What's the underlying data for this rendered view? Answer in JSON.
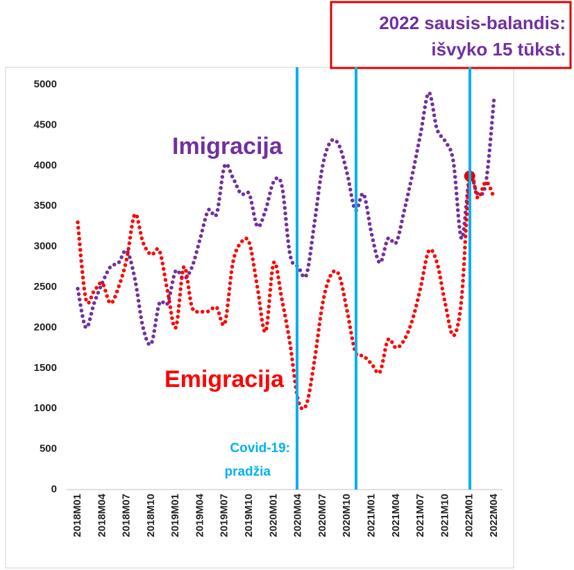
{
  "chart_data": {
    "type": "line",
    "categories": [
      "2018M01",
      null,
      null,
      "2018M04",
      null,
      null,
      "2018M07",
      null,
      null,
      "2018M10",
      null,
      null,
      "2019M01",
      null,
      null,
      "2019M04",
      null,
      null,
      "2019M07",
      null,
      null,
      "2019M10",
      null,
      null,
      "2020M01",
      null,
      null,
      "2020M04",
      null,
      null,
      "2020M07",
      null,
      null,
      "2020M10",
      null,
      null,
      "2021M01",
      null,
      null,
      "2021M04",
      null,
      null,
      "2021M07",
      null,
      null,
      "2021M10",
      null,
      null,
      "2022M01",
      null,
      null,
      "2022M04"
    ],
    "series": [
      {
        "name": "Imigracija",
        "color": "#7030a0",
        "values": [
          2480,
          2000,
          2300,
          2550,
          2750,
          2800,
          2950,
          2600,
          2000,
          1800,
          2300,
          2300,
          2700,
          2600,
          2750,
          3100,
          3450,
          3400,
          4000,
          3850,
          3650,
          3650,
          3250,
          3450,
          3800,
          3750,
          2900,
          2750,
          2650,
          3300,
          4000,
          4300,
          4250,
          3900,
          3450,
          3650,
          3150,
          2800,
          3100,
          3050,
          3450,
          3900,
          4400,
          4900,
          4450,
          4300,
          4050,
          3100,
          3850,
          3650,
          3800,
          4850
        ]
      },
      {
        "name": "Emigracija",
        "color": "#ff0000",
        "values": [
          3300,
          2350,
          2450,
          2550,
          2300,
          2500,
          2850,
          3400,
          3050,
          2900,
          2950,
          2450,
          2000,
          2750,
          2250,
          2200,
          2200,
          2250,
          2050,
          2800,
          3050,
          3050,
          2500,
          1950,
          2800,
          2350,
          1800,
          1100,
          1050,
          1600,
          2300,
          2650,
          2650,
          2200,
          1700,
          1650,
          1550,
          1450,
          1850,
          1750,
          1850,
          2100,
          2500,
          2950,
          2800,
          2300,
          1900,
          2350,
          3850,
          3600,
          3800,
          3600
        ]
      }
    ],
    "ylim": [
      0,
      5000
    ],
    "yticks": [
      0,
      500,
      1000,
      1500,
      2000,
      2500,
      3000,
      3500,
      4000,
      4500,
      5000
    ],
    "annotations": [
      "Covid-19:",
      "pradžia"
    ],
    "callout": [
      "2022 sausis-balandis:",
      "išvyko 15 tūkst."
    ]
  }
}
